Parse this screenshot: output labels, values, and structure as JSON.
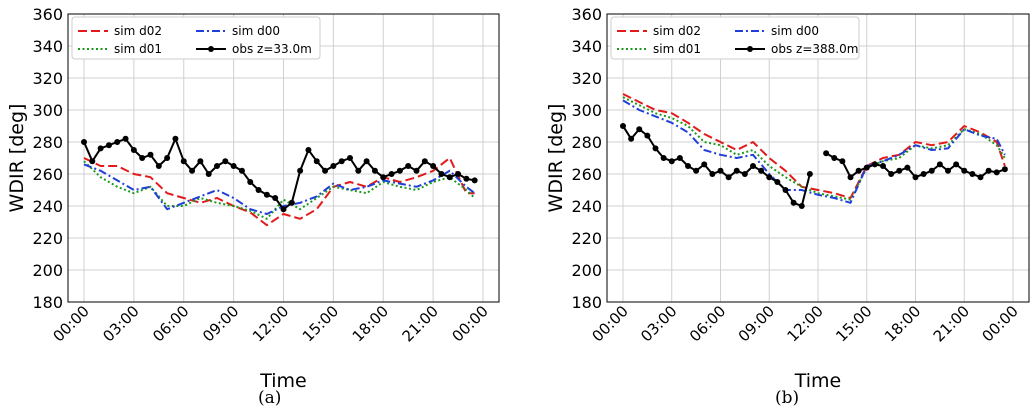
{
  "captions": [
    "(a)",
    "(b)"
  ],
  "colors": {
    "sim_d02": "#e31a1c",
    "sim_d01": "#1a9a1a",
    "sim_d00": "#1f3fd8",
    "obs": "#000000",
    "grid": "#d0d0d0"
  },
  "chart_data": [
    {
      "type": "line",
      "xlabel": "Time",
      "ylabel": "WDIR [deg]",
      "ylim": [
        180,
        360
      ],
      "yticks": [
        180,
        200,
        220,
        240,
        260,
        280,
        300,
        320,
        340,
        360
      ],
      "xticks": [
        "00:00",
        "03:00",
        "06:00",
        "09:00",
        "12:00",
        "15:00",
        "18:00",
        "21:00",
        "00:00"
      ],
      "x_unit": "hours",
      "legend_position": "top-left",
      "series": [
        {
          "name": "sim d02",
          "style": "dashed",
          "x": [
            0,
            1,
            2,
            3,
            4,
            5,
            6,
            7,
            8,
            9,
            10,
            11,
            12,
            13,
            14,
            15,
            16,
            17,
            18,
            19,
            20,
            21,
            22,
            23,
            23.5
          ],
          "y": [
            270,
            265,
            265,
            260,
            258,
            248,
            245,
            242,
            245,
            240,
            236,
            228,
            235,
            232,
            238,
            252,
            255,
            252,
            258,
            255,
            258,
            262,
            270,
            248,
            248
          ]
        },
        {
          "name": "sim d01",
          "style": "dotted",
          "x": [
            0,
            1,
            2,
            3,
            4,
            5,
            6,
            7,
            8,
            9,
            10,
            11,
            12,
            13,
            14,
            15,
            16,
            17,
            18,
            19,
            20,
            21,
            22,
            23,
            23.5
          ],
          "y": [
            268,
            258,
            252,
            248,
            252,
            240,
            240,
            245,
            242,
            240,
            237,
            232,
            244,
            238,
            245,
            252,
            250,
            248,
            255,
            252,
            250,
            255,
            258,
            250,
            245
          ]
        },
        {
          "name": "sim d00",
          "style": "dashdot",
          "x": [
            0,
            1,
            2,
            3,
            4,
            5,
            6,
            7,
            8,
            9,
            10,
            11,
            12,
            13,
            14,
            15,
            16,
            17,
            18,
            19,
            20,
            21,
            22,
            23,
            23.5
          ],
          "y": [
            266,
            262,
            256,
            250,
            252,
            238,
            242,
            246,
            250,
            245,
            238,
            235,
            240,
            242,
            246,
            254,
            250,
            252,
            256,
            254,
            252,
            256,
            262,
            252,
            248
          ]
        },
        {
          "name": "obs z=33.0m",
          "style": "solid-marker",
          "x": [
            0,
            0.5,
            1,
            1.5,
            2,
            2.5,
            3,
            3.5,
            4,
            4.5,
            5,
            5.5,
            6,
            6.5,
            7,
            7.5,
            8,
            8.5,
            9,
            9.5,
            10,
            10.5,
            11,
            11.5,
            12,
            12.5,
            13,
            13.5,
            14,
            14.5,
            15,
            15.5,
            16,
            16.5,
            17,
            17.5,
            18,
            18.5,
            19,
            19.5,
            20,
            20.5,
            21,
            21.5,
            22,
            22.5,
            23,
            23.5
          ],
          "y": [
            280,
            268,
            276,
            278,
            280,
            282,
            275,
            270,
            272,
            265,
            270,
            282,
            268,
            262,
            268,
            260,
            265,
            268,
            265,
            262,
            255,
            250,
            247,
            245,
            238,
            242,
            262,
            275,
            268,
            262,
            265,
            268,
            270,
            262,
            268,
            262,
            258,
            260,
            262,
            265,
            262,
            268,
            265,
            260,
            258,
            260,
            257,
            256
          ]
        }
      ]
    },
    {
      "type": "line",
      "xlabel": "Time",
      "ylabel": "WDIR [deg]",
      "ylim": [
        180,
        360
      ],
      "yticks": [
        180,
        200,
        220,
        240,
        260,
        280,
        300,
        320,
        340,
        360
      ],
      "xticks": [
        "00:00",
        "03:00",
        "06:00",
        "09:00",
        "12:00",
        "15:00",
        "18:00",
        "21:00",
        "00:00"
      ],
      "x_unit": "hours",
      "legend_position": "top-left",
      "series": [
        {
          "name": "sim d02",
          "style": "dashed",
          "x": [
            0,
            1,
            2,
            3,
            4,
            5,
            6,
            7,
            8,
            9,
            10,
            11,
            12,
            13,
            14,
            15,
            16,
            17,
            18,
            19,
            20,
            21,
            22,
            23,
            23.5
          ],
          "y": [
            310,
            305,
            300,
            298,
            292,
            285,
            280,
            275,
            280,
            270,
            262,
            252,
            250,
            248,
            245,
            265,
            270,
            272,
            280,
            278,
            280,
            290,
            286,
            280,
            265
          ]
        },
        {
          "name": "sim d01",
          "style": "dotted",
          "x": [
            0,
            1,
            2,
            3,
            4,
            5,
            6,
            7,
            8,
            9,
            10,
            11,
            12,
            13,
            14,
            15,
            16,
            17,
            18,
            19,
            20,
            21,
            22,
            23,
            23.5
          ],
          "y": [
            308,
            303,
            298,
            295,
            290,
            280,
            278,
            272,
            275,
            265,
            258,
            252,
            248,
            246,
            244,
            264,
            268,
            270,
            278,
            276,
            278,
            288,
            285,
            278,
            270
          ]
        },
        {
          "name": "sim d00",
          "style": "dashdot",
          "x": [
            0,
            1,
            2,
            3,
            4,
            5,
            6,
            7,
            8,
            9,
            10,
            11,
            12,
            13,
            14,
            15,
            16,
            17,
            18,
            19,
            20,
            21,
            22,
            23,
            23.5
          ],
          "y": [
            306,
            300,
            296,
            292,
            286,
            275,
            272,
            270,
            272,
            260,
            250,
            250,
            247,
            245,
            242,
            265,
            268,
            272,
            278,
            275,
            276,
            288,
            284,
            282,
            272
          ]
        },
        {
          "name": "obs z=388.0m",
          "style": "solid-marker",
          "x": [
            0,
            0.5,
            1,
            1.5,
            2,
            2.5,
            3,
            3.5,
            4,
            4.5,
            5,
            5.5,
            6,
            6.5,
            7,
            7.5,
            8,
            8.5,
            9,
            9.5,
            10,
            10.5,
            11,
            11.5,
            12,
            12.5,
            13,
            13.5,
            14,
            14.5,
            15,
            15.5,
            16,
            16.5,
            17,
            17.5,
            18,
            18.5,
            19,
            19.5,
            20,
            20.5,
            21,
            21.5,
            22,
            22.5,
            23,
            23.5
          ],
          "y": [
            290,
            282,
            288,
            284,
            276,
            270,
            268,
            270,
            265,
            262,
            266,
            260,
            262,
            258,
            262,
            260,
            265,
            262,
            258,
            255,
            250,
            242,
            240,
            260,
            null,
            273,
            270,
            268,
            258,
            262,
            264,
            266,
            265,
            260,
            262,
            264,
            258,
            260,
            262,
            266,
            262,
            266,
            262,
            260,
            258,
            262,
            261,
            263
          ]
        }
      ]
    }
  ]
}
